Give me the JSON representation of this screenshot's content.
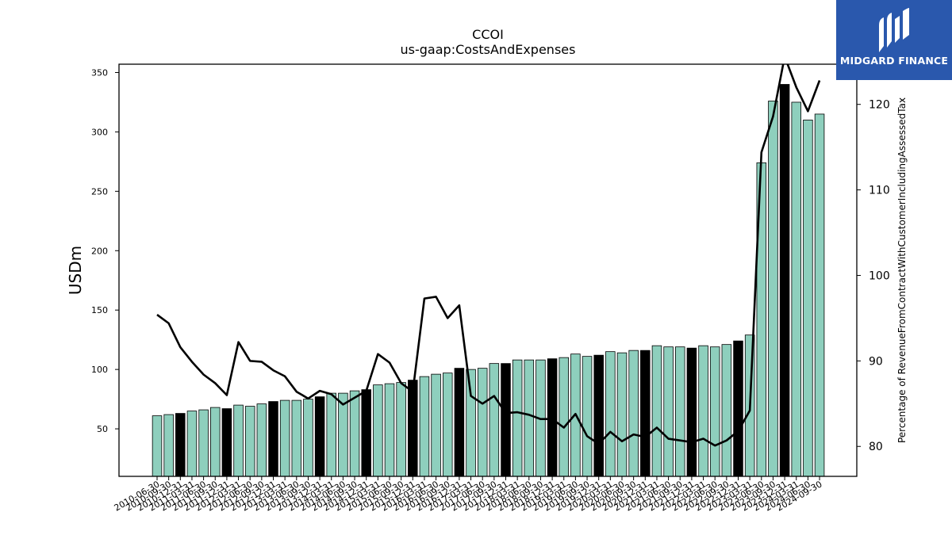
{
  "chart_data": {
    "type": "bar",
    "title": "CCOI",
    "subtitle": "us-gaap:CostsAndExpenses",
    "ylabel": "USDm",
    "y2label": "Percentage of RevenueFromContractWithCustomerIncludingAssessedTax",
    "ylim": [
      10,
      357
    ],
    "y2lim": [
      76.5,
      124.7
    ],
    "yticks": [
      50,
      100,
      150,
      200,
      250,
      300,
      350
    ],
    "y2ticks": [
      80,
      90,
      100,
      110,
      120
    ],
    "categories": [
      "2010-06-30",
      "2010-09-30",
      "2010-12-31",
      "2011-03-31",
      "2011-06-30",
      "2011-09-30",
      "2011-12-31",
      "2012-03-31",
      "2012-06-30",
      "2012-09-30",
      "2012-12-31",
      "2013-03-31",
      "2013-06-30",
      "2013-09-30",
      "2013-12-31",
      "2014-03-31",
      "2014-06-30",
      "2014-09-30",
      "2014-12-31",
      "2015-03-31",
      "2015-06-30",
      "2015-09-30",
      "2015-12-31",
      "2016-03-31",
      "2016-06-30",
      "2016-09-30",
      "2016-12-31",
      "2017-03-31",
      "2017-06-30",
      "2017-09-30",
      "2017-12-31",
      "2018-03-31",
      "2018-06-30",
      "2018-09-30",
      "2018-12-31",
      "2019-03-31",
      "2019-06-30",
      "2019-09-30",
      "2019-12-31",
      "2020-03-31",
      "2020-06-30",
      "2020-09-30",
      "2020-12-31",
      "2021-03-31",
      "2021-06-30",
      "2021-09-30",
      "2021-12-31",
      "2022-03-31",
      "2022-06-30",
      "2022-09-30",
      "2022-12-31",
      "2023-03-31",
      "2023-06-30",
      "2023-09-30",
      "2023-12-31",
      "2024-03-31",
      "2024-06-30",
      "2024-09-30"
    ],
    "series": [
      {
        "values": [
          61,
          62,
          63,
          65,
          66,
          68,
          67,
          70,
          69,
          71,
          73,
          74,
          74,
          75,
          77,
          80,
          80,
          82,
          83,
          87,
          88,
          89,
          91,
          94,
          96,
          97,
          101,
          100,
          101,
          105,
          105,
          108,
          108,
          108,
          109,
          110,
          113,
          111,
          112,
          115,
          114,
          116,
          116,
          120,
          119,
          119,
          118,
          120,
          119,
          121,
          124,
          129,
          274,
          326,
          340,
          325,
          310,
          315
        ]
      },
      {
        "values": [
          95.4,
          94.4,
          91.6,
          89.9,
          88.4,
          87.4,
          86.0,
          92.2,
          90.0,
          89.9,
          88.9,
          88.2,
          86.4,
          85.6,
          86.5,
          86.1,
          84.9,
          85.7,
          86.5,
          90.8,
          89.8,
          87.4,
          86.4,
          97.3,
          97.5,
          95.0,
          96.5,
          85.9,
          85.0,
          85.9,
          83.9,
          84.0,
          83.7,
          83.2,
          83.2,
          82.2,
          83.8,
          81.2,
          80.3,
          81.7,
          80.6,
          81.4,
          81.1,
          82.2,
          80.9,
          80.7,
          80.5,
          80.9,
          80.1,
          80.7,
          81.8,
          84.2,
          114.4,
          118.6,
          125.6,
          122.0,
          119.2,
          122.8
        ]
      }
    ],
    "bar_colors": {
      "default": "#8ecfbd",
      "year_end": "#000000"
    }
  },
  "logo": {
    "text": "MIDGARD FINANCE",
    "color": "#2a58ad"
  }
}
